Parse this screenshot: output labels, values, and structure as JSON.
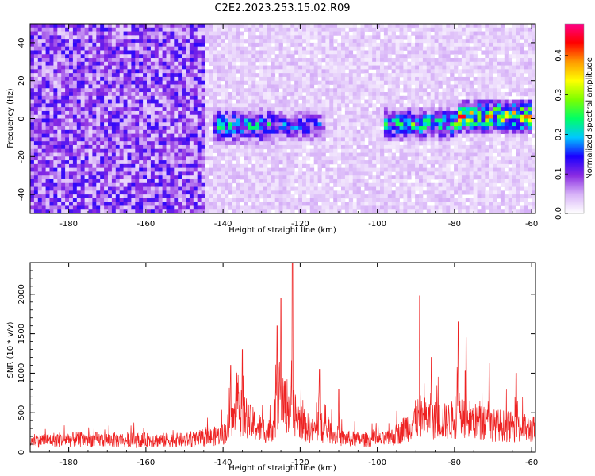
{
  "figure": {
    "title": "C2E2.2023.253.15.02.R09"
  },
  "chart_data": [
    {
      "type": "heatmap",
      "xlabel": "Height of straight line (km)",
      "ylabel": "Frequency (Hz)",
      "xlim": [
        -190,
        -59
      ],
      "ylim": [
        -50,
        50
      ],
      "xticks": [
        -180,
        -160,
        -140,
        -120,
        -100,
        -80,
        -60
      ],
      "yticks": [
        -40,
        -20,
        0,
        20,
        40
      ],
      "colorbar": {
        "label": "Normalized spectral amplitude",
        "range": [
          0,
          0.48
        ],
        "ticks": [
          "0.0",
          "0.1",
          "0.2",
          "0.3",
          "0.4"
        ],
        "colormap": [
          "#ffffff",
          "#d8b4f8",
          "#8a2be2",
          "#1a00ff",
          "#00c8ff",
          "#00ff66",
          "#7cff00",
          "#ffff00",
          "#ff9900",
          "#ff0000",
          "#ff0088"
        ]
      },
      "features": [
        {
          "x_range": [
            -143,
            -127
          ],
          "freq_center": -4,
          "freq_halfwidth": 8,
          "peak_amplitude": 0.25
        },
        {
          "x_range": [
            -127,
            -113
          ],
          "freq_center": -4,
          "freq_halfwidth": 7,
          "peak_amplitude": 0.2
        },
        {
          "x_range": [
            -98,
            -79
          ],
          "freq_center": -3,
          "freq_halfwidth": 7,
          "peak_amplitude": 0.28
        },
        {
          "x_range": [
            -79,
            -60
          ],
          "freq_center": 1,
          "freq_halfwidth": 7,
          "peak_amplitude": 0.42
        }
      ],
      "background_amplitude": {
        "x_below_-145": 0.08,
        "elsewhere": 0.03
      }
    },
    {
      "type": "line",
      "xlabel": "Height of straight line (km)",
      "ylabel": "SNR (10 * v/v)",
      "xlim": [
        -190,
        -59
      ],
      "ylim": [
        0,
        2400
      ],
      "xticks": [
        -180,
        -160,
        -140,
        -120,
        -100,
        -80,
        -60
      ],
      "yticks": [
        0,
        500,
        1000,
        1500,
        2000
      ],
      "series": [
        {
          "color": "#ee2222",
          "x": [
            -190,
            -180,
            -170,
            -160,
            -150,
            -145,
            -140,
            -137,
            -135,
            -133,
            -130,
            -128,
            -126,
            -124,
            -122,
            -120,
            -117,
            -115,
            -112,
            -110,
            -105,
            -100,
            -97,
            -94,
            -91,
            -89,
            -87,
            -85,
            -82,
            -80,
            -78,
            -76,
            -74,
            -72,
            -70,
            -68,
            -66,
            -64,
            -62,
            -60
          ],
          "baseline": [
            170,
            180,
            175,
            170,
            170,
            190,
            250,
            480,
            560,
            420,
            330,
            300,
            520,
            680,
            600,
            430,
            300,
            330,
            280,
            200,
            180,
            170,
            190,
            280,
            420,
            500,
            480,
            450,
            430,
            460,
            540,
            460,
            420,
            400,
            380,
            380,
            360,
            350,
            340,
            320
          ],
          "peaks": [
            {
              "x": -135,
              "y": 1300
            },
            {
              "x": -138,
              "y": 1100
            },
            {
              "x": -126,
              "y": 1600
            },
            {
              "x": -125,
              "y": 1950
            },
            {
              "x": -122,
              "y": 2400
            },
            {
              "x": -115,
              "y": 1050
            },
            {
              "x": -110,
              "y": 800
            },
            {
              "x": -89,
              "y": 1980
            },
            {
              "x": -86,
              "y": 1200
            },
            {
              "x": -79,
              "y": 1650
            },
            {
              "x": -77,
              "y": 1450
            },
            {
              "x": -71,
              "y": 1130
            },
            {
              "x": -64,
              "y": 1000
            }
          ]
        }
      ]
    }
  ]
}
